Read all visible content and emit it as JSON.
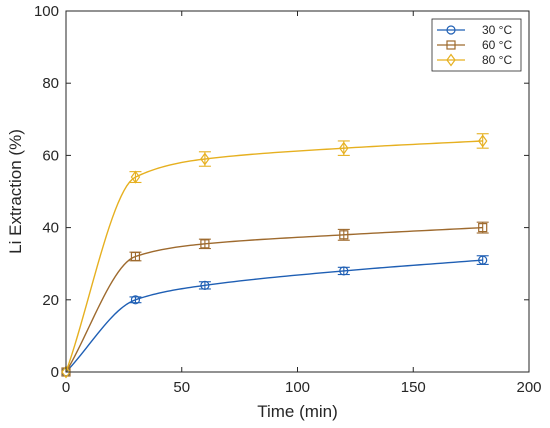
{
  "chart_data": {
    "type": "line",
    "xlabel": "Time (min)",
    "ylabel": "Li Extraction (%)",
    "xlim": [
      0,
      200
    ],
    "ylim": [
      0,
      100
    ],
    "xticks": [
      0,
      50,
      100,
      150,
      200
    ],
    "yticks": [
      0,
      20,
      40,
      60,
      80,
      100
    ],
    "legend_position": "top-right",
    "grid": false,
    "series": [
      {
        "name": "30 °C",
        "color": "#1f5fb4",
        "marker": "circle",
        "points": [
          {
            "x": 0,
            "y": 0,
            "err": 0
          },
          {
            "x": 30,
            "y": 20,
            "err": 0.8
          },
          {
            "x": 60,
            "y": 24,
            "err": 1.0
          },
          {
            "x": 120,
            "y": 28,
            "err": 1.0
          },
          {
            "x": 180,
            "y": 31,
            "err": 1.2
          }
        ]
      },
      {
        "name": "60 °C",
        "color": "#9e6a2e",
        "marker": "square",
        "points": [
          {
            "x": 0,
            "y": 0,
            "err": 0
          },
          {
            "x": 30,
            "y": 32,
            "err": 1.2
          },
          {
            "x": 60,
            "y": 35.5,
            "err": 1.3
          },
          {
            "x": 120,
            "y": 38,
            "err": 1.5
          },
          {
            "x": 180,
            "y": 40,
            "err": 1.5
          }
        ]
      },
      {
        "name": "80 °C",
        "color": "#e6b020",
        "marker": "diamond",
        "points": [
          {
            "x": 0,
            "y": 0,
            "err": 0
          },
          {
            "x": 30,
            "y": 54,
            "err": 1.5
          },
          {
            "x": 60,
            "y": 59,
            "err": 2.0
          },
          {
            "x": 120,
            "y": 62,
            "err": 2.0
          },
          {
            "x": 180,
            "y": 64,
            "err": 2.0
          }
        ]
      }
    ]
  }
}
